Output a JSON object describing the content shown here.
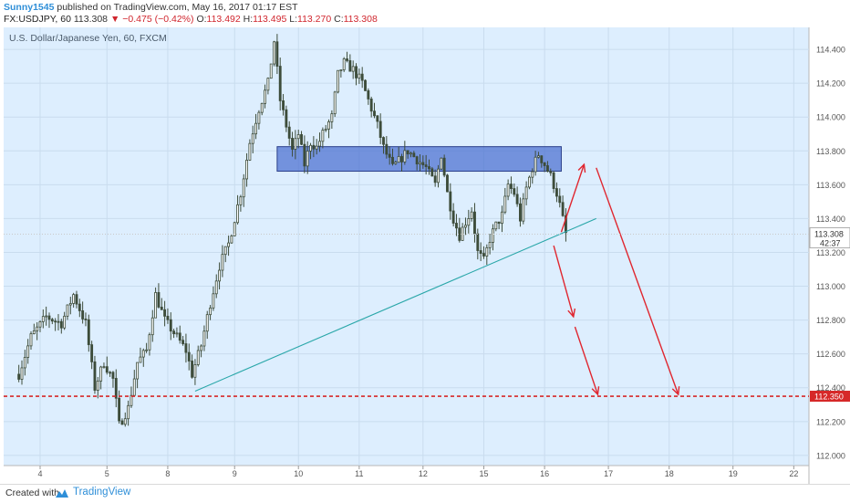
{
  "header": {
    "author": "Sunny1545",
    "published_text": "published on TradingView.com, May 16, 2017 01:17 EST",
    "symbol": "FX:USDJPY, 60",
    "last": "113.308",
    "direction_glyph": "▼",
    "change": "−0.475 (−0.42%)",
    "o_label": "O:",
    "o_value": "113.492",
    "h_label": "H:",
    "h_value": "113.495",
    "l_label": "L:",
    "l_value": "113.270",
    "c_label": "C:",
    "c_value": "113.308"
  },
  "footer": {
    "created_with": "Created with",
    "brand": "TradingView"
  },
  "colors": {
    "plot_bg": "#ddeefe",
    "grid": "#c9dcee",
    "candle": "#3d4c3a",
    "zone_fill": "#4a6fd0",
    "trend": "#2aa7a9",
    "arrows": "#e0262f",
    "target_line": "#d62828",
    "price_label_bg": "#d62828"
  },
  "chart_data": {
    "type": "candlestick",
    "title": "U.S. Dollar/Japanese Yen, 60, FXCM",
    "ylim": [
      111.94,
      114.53
    ],
    "xlim": [
      -5,
      260
    ],
    "x_unit": "hourly bars",
    "y_ticks": [
      "114.400",
      "114.200",
      "114.000",
      "113.800",
      "113.600",
      "113.400",
      "113.200",
      "113.000",
      "112.800",
      "112.600",
      "112.400",
      "112.200",
      "112.000"
    ],
    "x_ticks": [
      {
        "label": "4",
        "bar": 7
      },
      {
        "label": "5",
        "bar": 29
      },
      {
        "label": "8",
        "bar": 49
      },
      {
        "label": "9",
        "bar": 71
      },
      {
        "label": "10",
        "bar": 92
      },
      {
        "label": "11",
        "bar": 112
      },
      {
        "label": "12",
        "bar": 133
      },
      {
        "label": "15",
        "bar": 153
      },
      {
        "label": "16",
        "bar": 173
      },
      {
        "label": "17",
        "bar": 194
      },
      {
        "label": "18",
        "bar": 214
      },
      {
        "label": "19",
        "bar": 235
      },
      {
        "label": "22",
        "bar": 255
      }
    ],
    "price_path": [
      [
        0,
        112.48
      ],
      [
        4,
        112.7
      ],
      [
        9,
        112.82
      ],
      [
        14,
        112.78
      ],
      [
        18,
        112.95
      ],
      [
        22,
        112.78
      ],
      [
        25,
        112.4
      ],
      [
        28,
        112.55
      ],
      [
        31,
        112.45
      ],
      [
        33,
        112.18
      ],
      [
        36,
        112.28
      ],
      [
        39,
        112.55
      ],
      [
        42,
        112.62
      ],
      [
        45,
        112.95
      ],
      [
        48,
        112.8
      ],
      [
        52,
        112.7
      ],
      [
        55,
        112.62
      ],
      [
        57,
        112.48
      ],
      [
        60,
        112.65
      ],
      [
        63,
        112.9
      ],
      [
        66,
        113.12
      ],
      [
        69,
        113.25
      ],
      [
        71,
        113.4
      ],
      [
        73,
        113.55
      ],
      [
        76,
        113.85
      ],
      [
        79,
        114.05
      ],
      [
        82,
        114.2
      ],
      [
        84,
        114.45
      ],
      [
        86,
        114.1
      ],
      [
        88,
        113.95
      ],
      [
        90,
        113.8
      ],
      [
        92,
        113.9
      ],
      [
        94,
        113.72
      ],
      [
        96,
        113.85
      ],
      [
        98,
        113.82
      ],
      [
        100,
        113.9
      ],
      [
        103,
        114.0
      ],
      [
        105,
        114.25
      ],
      [
        107,
        114.32
      ],
      [
        110,
        114.28
      ],
      [
        113,
        114.2
      ],
      [
        116,
        114.05
      ],
      [
        118,
        113.95
      ],
      [
        120,
        113.82
      ],
      [
        123,
        113.7
      ],
      [
        126,
        113.76
      ],
      [
        128,
        113.8
      ],
      [
        131,
        113.75
      ],
      [
        134,
        113.7
      ],
      [
        137,
        113.6
      ],
      [
        139,
        113.78
      ],
      [
        141,
        113.55
      ],
      [
        143,
        113.4
      ],
      [
        145,
        113.3
      ],
      [
        147,
        113.38
      ],
      [
        149,
        113.45
      ],
      [
        151,
        113.2
      ],
      [
        153,
        113.15
      ],
      [
        155,
        113.28
      ],
      [
        157,
        113.36
      ],
      [
        159,
        113.42
      ],
      [
        161,
        113.6
      ],
      [
        163,
        113.55
      ],
      [
        165,
        113.4
      ],
      [
        167,
        113.58
      ],
      [
        169,
        113.7
      ],
      [
        171,
        113.78
      ],
      [
        173,
        113.72
      ],
      [
        175,
        113.65
      ],
      [
        177,
        113.55
      ],
      [
        178,
        113.48
      ],
      [
        180,
        113.31
      ]
    ],
    "price_labels": {
      "last": "113.308",
      "countdown": "42:37",
      "target": "112.350"
    },
    "annotations": {
      "resistance_zone": {
        "x0": 85,
        "x1": 178.5,
        "y0": 113.68,
        "y1": 113.825
      },
      "trendline": {
        "x0": 58,
        "y0": 112.38,
        "x1": 190,
        "y1": 113.4
      },
      "target_line": {
        "y": 112.35
      },
      "arrows": [
        {
          "x0": 178.5,
          "y0": 113.32,
          "x1": 186,
          "y1": 113.72
        },
        {
          "x0": 190,
          "y0": 113.7,
          "x1": 217,
          "y1": 112.36
        },
        {
          "x0": 176,
          "y0": 113.24,
          "x1": 182.5,
          "y1": 112.82
        },
        {
          "x0": 183,
          "y0": 112.76,
          "x1": 190.5,
          "y1": 112.36
        }
      ]
    }
  }
}
